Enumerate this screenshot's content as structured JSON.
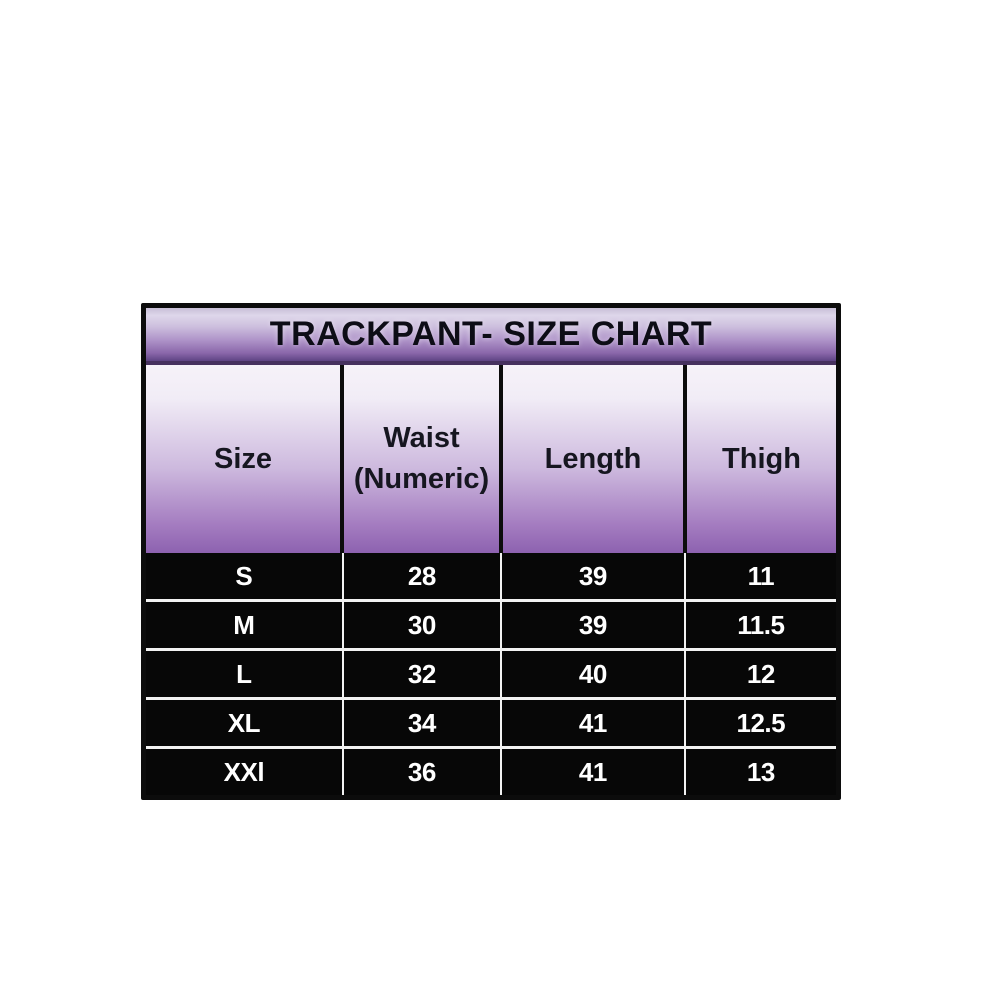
{
  "chart_data": {
    "type": "table",
    "title": "TRACKPANT- SIZE CHART",
    "columns": [
      "Size",
      "Waist (Numeric)",
      "Length",
      "Thigh"
    ],
    "rows": [
      [
        "S",
        "28",
        "39",
        "11"
      ],
      [
        "M",
        "30",
        "39",
        "11.5"
      ],
      [
        "L",
        "32",
        "40",
        "12"
      ],
      [
        "XL",
        "34",
        "41",
        "12.5"
      ],
      [
        "XXl",
        "36",
        "41",
        "13"
      ]
    ]
  },
  "table_ui": {
    "headers": [
      {
        "line1": "Size",
        "line2": ""
      },
      {
        "line1": "Waist",
        "line2": "(Numeric)"
      },
      {
        "line1": "Length",
        "line2": ""
      },
      {
        "line1": "Thigh",
        "line2": ""
      }
    ]
  },
  "colors": {
    "title_gradient_top": "#c8bed7",
    "title_gradient_bottom": "#5e4484",
    "title_divider": "#46315f",
    "header_gradient_top": "#f6f2f9",
    "header_gradient_bottom": "#8d62b0",
    "data_row_bg": "#070707",
    "data_text": "#ffffff",
    "grid_line": "#ffffff",
    "outer_border": "#0c0c0c",
    "page_background": "#ffffff"
  }
}
